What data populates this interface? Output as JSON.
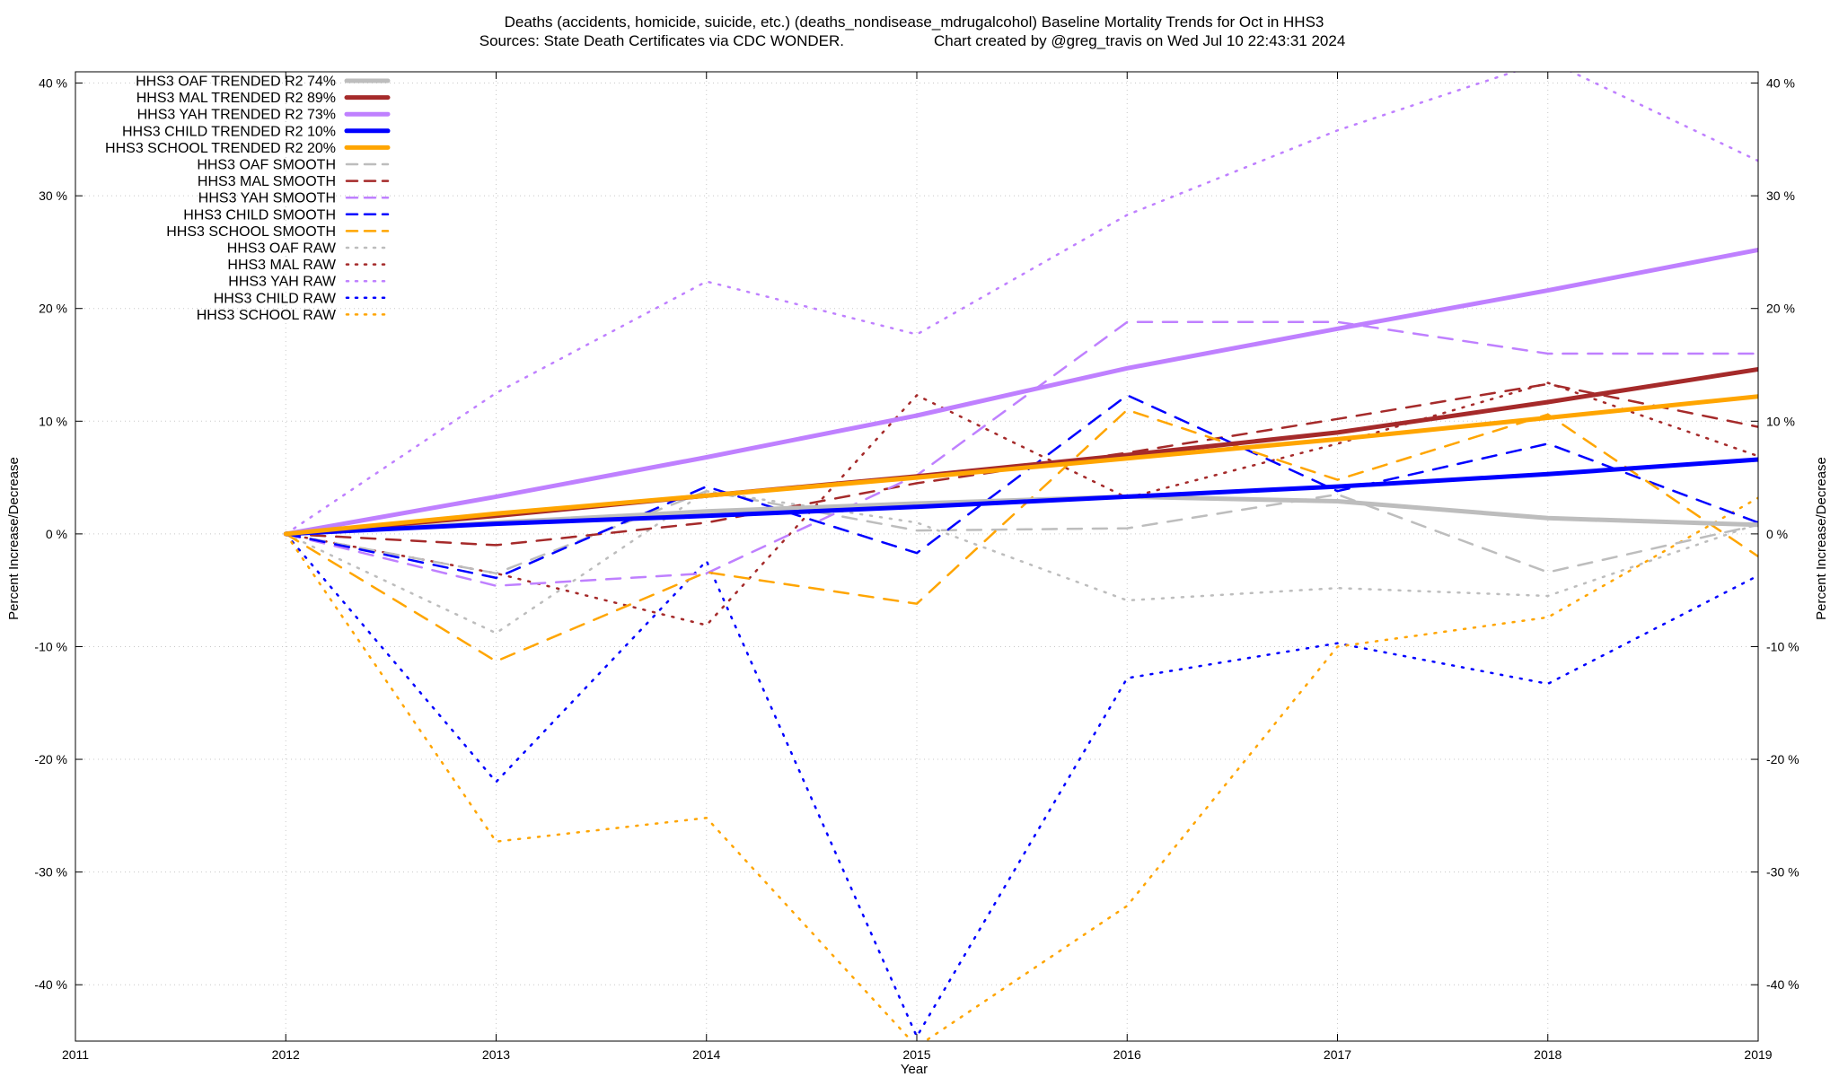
{
  "chart_data": {
    "type": "line",
    "title": "Deaths (accidents, homicide, suicide, etc.) (deaths_nondisease_mdrugalcohol)  Baseline Mortality Trends for Oct in HHS3",
    "subtitle_left": "Sources: State Death Certificates via CDC WONDER.",
    "subtitle_right": "Chart created by @greg_travis on Wed Jul 10 22:43:31 2024",
    "xlabel": "Year",
    "ylabel": "Percent Increase/Decrease",
    "xlim": [
      2011,
      2019
    ],
    "ylim": [
      -45,
      41
    ],
    "x_ticks": [
      2011,
      2012,
      2013,
      2014,
      2015,
      2016,
      2017,
      2018,
      2019
    ],
    "y_ticks": [
      -40,
      -30,
      -20,
      -10,
      0,
      10,
      20,
      30,
      40
    ],
    "y_tick_suffix": " %",
    "grid": true,
    "legend_position": "top-left",
    "series": [
      {
        "name": "HHS3 OAF TRENDED R2  74%",
        "style": "solid",
        "color": "#bdbdbd",
        "x": [
          2012,
          2013,
          2014,
          2015,
          2016,
          2017,
          2018,
          2019
        ],
        "values": [
          0,
          1.0,
          2.0,
          2.7,
          3.3,
          2.9,
          1.4,
          0.8
        ]
      },
      {
        "name": "HHS3 MAL TRENDED R2  89%",
        "style": "solid",
        "color": "#a52a2a",
        "x": [
          2012,
          2013,
          2014,
          2015,
          2016,
          2017,
          2018,
          2019
        ],
        "values": [
          0,
          1.6,
          3.4,
          5.1,
          7.0,
          9.0,
          11.7,
          14.6
        ]
      },
      {
        "name": "HHS3 YAH TRENDED R2  73%",
        "style": "solid",
        "color": "#bf80ff",
        "x": [
          2012,
          2013,
          2014,
          2015,
          2016,
          2017,
          2018,
          2019
        ],
        "values": [
          0,
          3.3,
          6.8,
          10.5,
          14.7,
          18.2,
          21.6,
          25.2
        ]
      },
      {
        "name": "HHS3 CHILD TRENDED R2  10%",
        "style": "solid",
        "color": "#0000ff",
        "x": [
          2012,
          2013,
          2014,
          2015,
          2016,
          2017,
          2018,
          2019
        ],
        "values": [
          0,
          0.9,
          1.6,
          2.4,
          3.3,
          4.2,
          5.3,
          6.6
        ]
      },
      {
        "name": "HHS3 SCHOOL TRENDED R2  20%",
        "style": "solid",
        "color": "#ffa500",
        "x": [
          2012,
          2013,
          2014,
          2015,
          2016,
          2017,
          2018,
          2019
        ],
        "values": [
          0,
          1.8,
          3.4,
          5.0,
          6.7,
          8.4,
          10.3,
          12.2
        ]
      },
      {
        "name": "HHS3 OAF SMOOTH",
        "style": "dashed",
        "color": "#bdbdbd",
        "x": [
          2012,
          2013,
          2014,
          2015,
          2016,
          2017,
          2018,
          2019
        ],
        "values": [
          0,
          -3.5,
          3.8,
          0.3,
          0.5,
          3.5,
          -3.4,
          0.8
        ]
      },
      {
        "name": "HHS3 MAL SMOOTH",
        "style": "dashed",
        "color": "#a52a2a",
        "x": [
          2012,
          2013,
          2014,
          2015,
          2016,
          2017,
          2018,
          2019
        ],
        "values": [
          0,
          -1.0,
          1.0,
          4.5,
          7.2,
          10.2,
          13.3,
          9.5
        ]
      },
      {
        "name": "HHS3 YAH SMOOTH",
        "style": "dashed",
        "color": "#bf80ff",
        "x": [
          2012,
          2013,
          2014,
          2015,
          2016,
          2017,
          2018,
          2019
        ],
        "values": [
          0,
          -4.6,
          -3.5,
          5.2,
          18.8,
          18.8,
          16.0,
          16.0
        ]
      },
      {
        "name": "HHS3 CHILD SMOOTH",
        "style": "dashed",
        "color": "#0000ff",
        "x": [
          2012,
          2013,
          2014,
          2015,
          2016,
          2017,
          2018,
          2019
        ],
        "values": [
          0,
          -3.9,
          4.2,
          -1.7,
          12.3,
          3.8,
          8.0,
          1.0
        ]
      },
      {
        "name": "HHS3 SCHOOL SMOOTH",
        "style": "dashed",
        "color": "#ffa500",
        "x": [
          2012,
          2013,
          2014,
          2015,
          2016,
          2017,
          2018,
          2019
        ],
        "values": [
          0,
          -11.3,
          -3.4,
          -6.2,
          11.0,
          4.8,
          10.6,
          -2.0
        ]
      },
      {
        "name": "HHS3 OAF RAW",
        "style": "dotted",
        "color": "#bdbdbd",
        "x": [
          2012,
          2013,
          2014,
          2015,
          2016,
          2017,
          2018,
          2019
        ],
        "values": [
          0,
          -8.8,
          3.8,
          1.0,
          -5.9,
          -4.8,
          -5.5,
          0.9
        ]
      },
      {
        "name": "HHS3 MAL RAW",
        "style": "dotted",
        "color": "#a52a2a",
        "x": [
          2012,
          2013,
          2014,
          2015,
          2016,
          2017,
          2018,
          2019
        ],
        "values": [
          0,
          -3.5,
          -8.1,
          12.3,
          3.2,
          8.0,
          13.4,
          6.9
        ]
      },
      {
        "name": "HHS3 YAH RAW",
        "style": "dotted",
        "color": "#bf80ff",
        "x": [
          2012,
          2013,
          2014,
          2015,
          2016,
          2017,
          2018,
          2019
        ],
        "values": [
          0,
          12.5,
          22.4,
          17.7,
          28.3,
          35.8,
          42.0,
          33.1
        ]
      },
      {
        "name": "HHS3 CHILD RAW",
        "style": "dotted",
        "color": "#0000ff",
        "x": [
          2012,
          2013,
          2014,
          2015,
          2016,
          2017,
          2018,
          2019
        ],
        "values": [
          0,
          -22.0,
          -2.4,
          -44.6,
          -12.8,
          -9.7,
          -13.3,
          -3.7
        ]
      },
      {
        "name": "HHS3 SCHOOL RAW",
        "style": "dotted",
        "color": "#ffa500",
        "x": [
          2012,
          2013,
          2014,
          2015,
          2016,
          2017,
          2018,
          2019
        ],
        "values": [
          0,
          -27.3,
          -25.2,
          -45.5,
          -33.0,
          -10.0,
          -7.4,
          3.2
        ]
      }
    ]
  }
}
